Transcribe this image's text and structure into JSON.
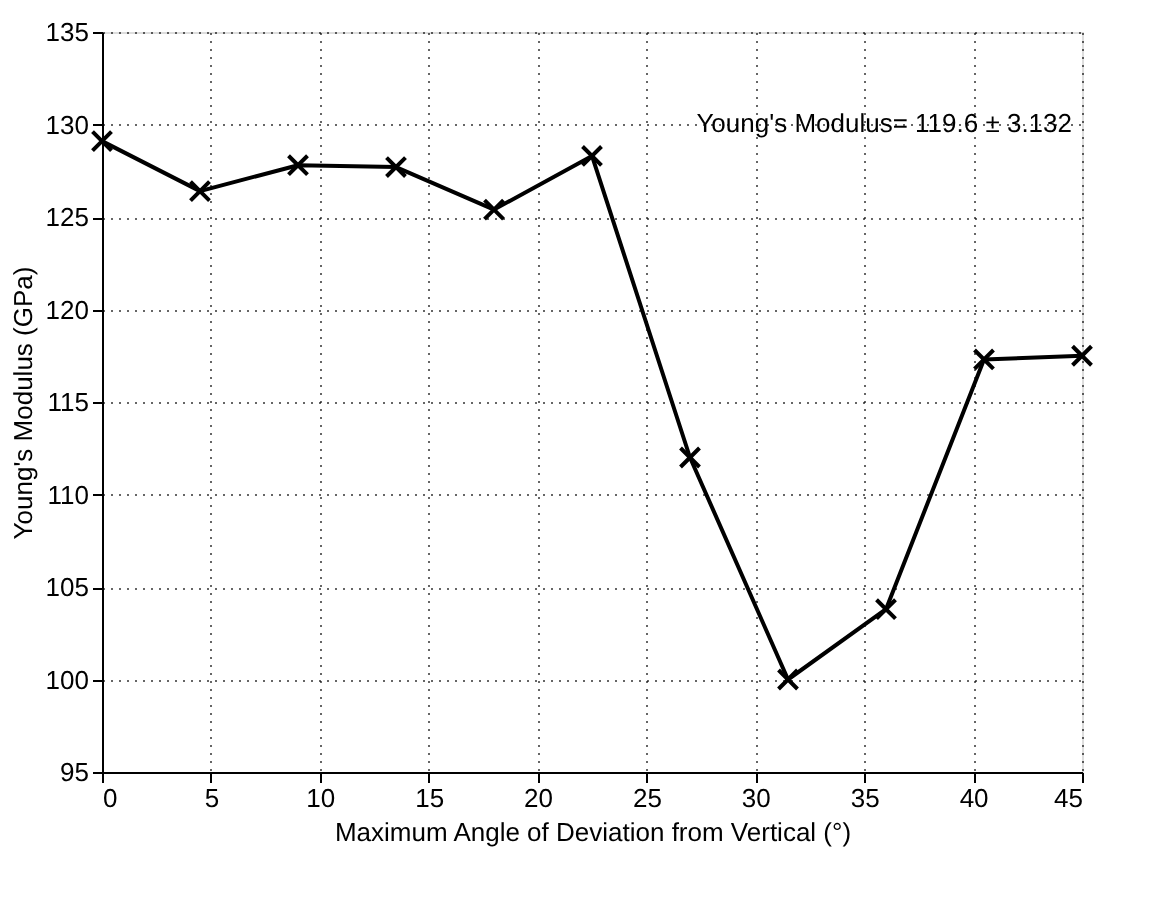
{
  "chart_data": {
    "type": "line",
    "xlabel": "Maximum Angle of Deviation from Vertical (°)",
    "ylabel": "Young's Modulus (GPa)",
    "x": [
      0,
      4.5,
      9,
      13.5,
      18,
      22.5,
      27,
      31.5,
      36,
      40.5,
      45
    ],
    "series": [
      {
        "color": "#000000",
        "values": [
          129.1,
          126.4,
          127.8,
          127.7,
          125.4,
          128.3,
          112.0,
          100.0,
          103.8,
          117.3,
          117.5
        ]
      }
    ],
    "xlim": [
      0,
      45
    ],
    "xticks": [
      0,
      5,
      10,
      15,
      20,
      25,
      30,
      35,
      40,
      45
    ],
    "ylim": [
      95,
      135
    ],
    "yticks": [
      95,
      100,
      105,
      110,
      115,
      120,
      125,
      130,
      135
    ],
    "grid": true,
    "marker": "cross",
    "line_style": "solid",
    "annotations": [
      "Young's Modulus= 119.6 ± 3.132"
    ]
  }
}
